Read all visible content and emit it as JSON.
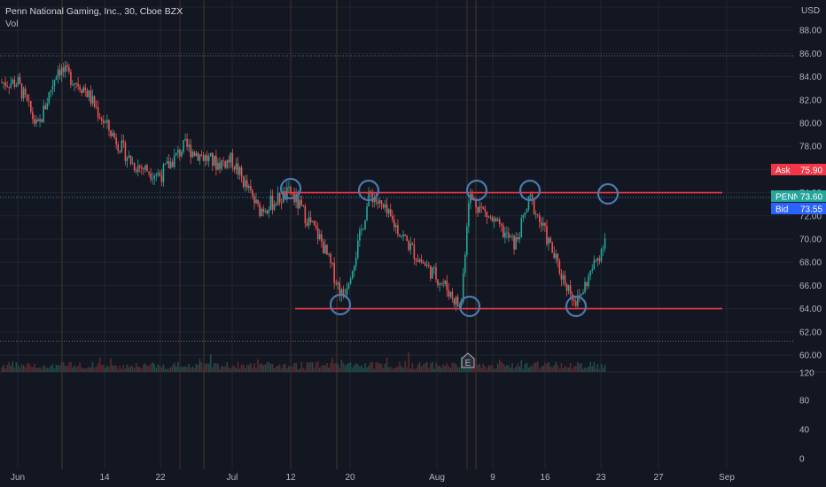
{
  "header": {
    "title": "Penn National Gaming, Inc., 30, Cboe BZX",
    "vol_label": "Vol"
  },
  "price_axis": {
    "currency": "USD",
    "ticks": [
      "90.00",
      "88.00",
      "86.00",
      "84.00",
      "82.00",
      "80.00",
      "78.00",
      "76.00",
      "74.00",
      "72.00",
      "70.00",
      "68.00",
      "66.00",
      "64.00",
      "62.00",
      "60.00"
    ]
  },
  "volume_axis": {
    "ticks": [
      "120",
      "80",
      "40",
      "0"
    ]
  },
  "time_axis": {
    "labels": [
      "Jun",
      "14",
      "22",
      "Jul",
      "12",
      "20",
      "Aug",
      "9",
      "16",
      "23",
      "27",
      "Sep"
    ]
  },
  "quote": {
    "ask_label": "Ask",
    "ask_value": "75.90",
    "symbol": "PENN",
    "last_value": "73.60",
    "bid_label": "Bid",
    "bid_value": "73.55"
  },
  "earnings_marker": "E",
  "colors": {
    "background": "#131722",
    "up": "#26a69a",
    "down": "#ef5350",
    "trendline": "#f23645",
    "circle": "#4a7ab0",
    "ask_tag": "#f23645",
    "last_tag": "#26a69a",
    "bid_tag": "#2962ff"
  },
  "chart_data": {
    "type": "candlestick",
    "title": "Penn National Gaming, Inc., 30, Cboe BZX",
    "ylim": [
      59,
      91
    ],
    "y_unit": "USD",
    "approx_close_path": [
      {
        "date": "Jun 01",
        "price": 83.5
      },
      {
        "date": "Jun 04",
        "price": 79.5
      },
      {
        "date": "Jun 07",
        "price": 84.8
      },
      {
        "date": "Jun 11",
        "price": 83.0
      },
      {
        "date": "Jun 14",
        "price": 80.0
      },
      {
        "date": "Jun 18",
        "price": 76.5
      },
      {
        "date": "Jun 22",
        "price": 75.5
      },
      {
        "date": "Jun 25",
        "price": 78.0
      },
      {
        "date": "Jun 29",
        "price": 76.5
      },
      {
        "date": "Jul 01",
        "price": 76.8
      },
      {
        "date": "Jul 06",
        "price": 72.5
      },
      {
        "date": "Jul 08",
        "price": 73.0
      },
      {
        "date": "Jul 12",
        "price": 74.0
      },
      {
        "date": "Jul 16",
        "price": 70.0
      },
      {
        "date": "Jul 19",
        "price": 65.0
      },
      {
        "date": "Jul 21",
        "price": 69.0
      },
      {
        "date": "Jul 23",
        "price": 74.0
      },
      {
        "date": "Jul 27",
        "price": 71.0
      },
      {
        "date": "Jul 30",
        "price": 68.5
      },
      {
        "date": "Aug 03",
        "price": 66.0
      },
      {
        "date": "Aug 05",
        "price": 64.0
      },
      {
        "date": "Aug 06",
        "price": 73.8
      },
      {
        "date": "Aug 09",
        "price": 71.5
      },
      {
        "date": "Aug 12",
        "price": 69.5
      },
      {
        "date": "Aug 14",
        "price": 73.5
      },
      {
        "date": "Aug 16",
        "price": 70.5
      },
      {
        "date": "Aug 18",
        "price": 67.0
      },
      {
        "date": "Aug 20",
        "price": 64.5
      },
      {
        "date": "Aug 23",
        "price": 69.0
      },
      {
        "date": "Aug 24",
        "price": 73.6
      }
    ],
    "resistance_level": 74.0,
    "support_level": 64.0,
    "ask": 75.9,
    "last": 73.6,
    "bid": 73.55,
    "volume_range": [
      0,
      120
    ],
    "grid": true
  }
}
